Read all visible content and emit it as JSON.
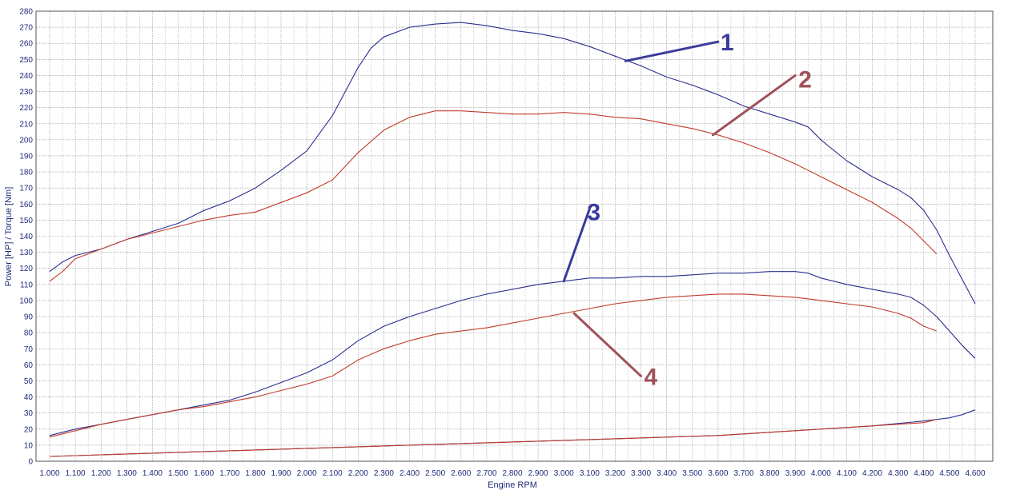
{
  "chart_data": {
    "type": "line",
    "title": "",
    "xlabel": "Engine RPM",
    "ylabel": "Power [HP] / Torque [Nm]",
    "xlim": [
      1000,
      4600
    ],
    "ylim": [
      0,
      280
    ],
    "grid": true,
    "x_ticks": [
      "1.000",
      "1.100",
      "1.200",
      "1.300",
      "1.400",
      "1.500",
      "1.600",
      "1.700",
      "1.800",
      "1.900",
      "2.000",
      "2.100",
      "2.200",
      "2.300",
      "2.400",
      "2.500",
      "2.600",
      "2.700",
      "2.800",
      "2.900",
      "3.000",
      "3.100",
      "3.200",
      "3.300",
      "3.400",
      "3.500",
      "3.600",
      "3.700",
      "3.800",
      "3.900",
      "4.000",
      "4.100",
      "4.200",
      "4.300",
      "4.400",
      "4.500",
      "4.600"
    ],
    "y_ticks": [
      "0",
      "10",
      "20",
      "30",
      "40",
      "50",
      "60",
      "70",
      "80",
      "90",
      "100",
      "110",
      "120",
      "130",
      "140",
      "150",
      "160",
      "170",
      "180",
      "190",
      "200",
      "210",
      "220",
      "230",
      "240",
      "250",
      "260",
      "270",
      "280"
    ],
    "series": [
      {
        "color": "#2a2f8f",
        "points": [
          [
            1000,
            118
          ],
          [
            1050,
            124
          ],
          [
            1100,
            128
          ],
          [
            1200,
            132
          ],
          [
            1300,
            138
          ],
          [
            1400,
            143
          ],
          [
            1500,
            148
          ],
          [
            1600,
            156
          ],
          [
            1700,
            162
          ],
          [
            1800,
            170
          ],
          [
            1900,
            181
          ],
          [
            2000,
            193
          ],
          [
            2100,
            215
          ],
          [
            2200,
            245
          ],
          [
            2250,
            257
          ],
          [
            2300,
            264
          ],
          [
            2400,
            270
          ],
          [
            2500,
            272
          ],
          [
            2600,
            273
          ],
          [
            2700,
            271
          ],
          [
            2800,
            268
          ],
          [
            2900,
            266
          ],
          [
            3000,
            263
          ],
          [
            3100,
            258
          ],
          [
            3200,
            252
          ],
          [
            3300,
            246
          ],
          [
            3400,
            239
          ],
          [
            3500,
            234
          ],
          [
            3600,
            228
          ],
          [
            3700,
            221
          ],
          [
            3800,
            216
          ],
          [
            3900,
            211
          ],
          [
            3950,
            208
          ],
          [
            4000,
            200
          ],
          [
            4100,
            187
          ],
          [
            4200,
            177
          ],
          [
            4300,
            169
          ],
          [
            4350,
            164
          ],
          [
            4400,
            156
          ],
          [
            4450,
            144
          ],
          [
            4500,
            128
          ],
          [
            4550,
            113
          ],
          [
            4600,
            98
          ]
        ]
      },
      {
        "color": "#c23b2b",
        "points": [
          [
            1000,
            112
          ],
          [
            1050,
            118
          ],
          [
            1100,
            126
          ],
          [
            1200,
            132
          ],
          [
            1300,
            138
          ],
          [
            1400,
            142
          ],
          [
            1500,
            146
          ],
          [
            1600,
            150
          ],
          [
            1700,
            153
          ],
          [
            1800,
            155
          ],
          [
            1900,
            161
          ],
          [
            2000,
            167
          ],
          [
            2100,
            175
          ],
          [
            2200,
            192
          ],
          [
            2300,
            206
          ],
          [
            2400,
            214
          ],
          [
            2500,
            218
          ],
          [
            2600,
            218
          ],
          [
            2700,
            217
          ],
          [
            2800,
            216
          ],
          [
            2900,
            216
          ],
          [
            3000,
            217
          ],
          [
            3100,
            216
          ],
          [
            3200,
            214
          ],
          [
            3300,
            213
          ],
          [
            3400,
            210
          ],
          [
            3500,
            207
          ],
          [
            3600,
            203
          ],
          [
            3700,
            198
          ],
          [
            3800,
            192
          ],
          [
            3900,
            185
          ],
          [
            4000,
            177
          ],
          [
            4100,
            169
          ],
          [
            4200,
            161
          ],
          [
            4300,
            151
          ],
          [
            4350,
            145
          ],
          [
            4400,
            137
          ],
          [
            4450,
            129
          ]
        ]
      },
      {
        "color": "#2a2f8f",
        "points": [
          [
            1000,
            16
          ],
          [
            1100,
            20
          ],
          [
            1200,
            23
          ],
          [
            1300,
            26
          ],
          [
            1400,
            29
          ],
          [
            1500,
            32
          ],
          [
            1600,
            35
          ],
          [
            1700,
            38
          ],
          [
            1800,
            43
          ],
          [
            1900,
            49
          ],
          [
            2000,
            55
          ],
          [
            2100,
            63
          ],
          [
            2200,
            75
          ],
          [
            2300,
            84
          ],
          [
            2400,
            90
          ],
          [
            2500,
            95
          ],
          [
            2600,
            100
          ],
          [
            2700,
            104
          ],
          [
            2800,
            107
          ],
          [
            2900,
            110
          ],
          [
            3000,
            112
          ],
          [
            3100,
            114
          ],
          [
            3200,
            114
          ],
          [
            3300,
            115
          ],
          [
            3400,
            115
          ],
          [
            3500,
            116
          ],
          [
            3600,
            117
          ],
          [
            3700,
            117
          ],
          [
            3800,
            118
          ],
          [
            3900,
            118
          ],
          [
            3950,
            117
          ],
          [
            4000,
            114
          ],
          [
            4100,
            110
          ],
          [
            4200,
            107
          ],
          [
            4300,
            104
          ],
          [
            4350,
            102
          ],
          [
            4400,
            97
          ],
          [
            4450,
            90
          ],
          [
            4500,
            81
          ],
          [
            4550,
            72
          ],
          [
            4600,
            64
          ]
        ]
      },
      {
        "color": "#c23b2b",
        "points": [
          [
            1000,
            15
          ],
          [
            1100,
            19
          ],
          [
            1200,
            23
          ],
          [
            1300,
            26
          ],
          [
            1400,
            29
          ],
          [
            1500,
            32
          ],
          [
            1600,
            34
          ],
          [
            1700,
            37
          ],
          [
            1800,
            40
          ],
          [
            1900,
            44
          ],
          [
            2000,
            48
          ],
          [
            2100,
            53
          ],
          [
            2200,
            63
          ],
          [
            2300,
            70
          ],
          [
            2400,
            75
          ],
          [
            2500,
            79
          ],
          [
            2600,
            81
          ],
          [
            2700,
            83
          ],
          [
            2800,
            86
          ],
          [
            2900,
            89
          ],
          [
            3000,
            92
          ],
          [
            3100,
            95
          ],
          [
            3200,
            98
          ],
          [
            3300,
            100
          ],
          [
            3400,
            102
          ],
          [
            3500,
            103
          ],
          [
            3600,
            104
          ],
          [
            3700,
            104
          ],
          [
            3800,
            103
          ],
          [
            3900,
            102
          ],
          [
            4000,
            100
          ],
          [
            4100,
            98
          ],
          [
            4200,
            96
          ],
          [
            4300,
            92
          ],
          [
            4350,
            89
          ],
          [
            4400,
            84
          ],
          [
            4450,
            81
          ]
        ]
      },
      {
        "color": "#2a2f8f",
        "points": [
          [
            1000,
            3
          ],
          [
            1200,
            4
          ],
          [
            1400,
            5
          ],
          [
            1600,
            6
          ],
          [
            1800,
            7
          ],
          [
            2000,
            8
          ],
          [
            2200,
            9
          ],
          [
            2400,
            10
          ],
          [
            2600,
            11
          ],
          [
            2800,
            12
          ],
          [
            3000,
            13
          ],
          [
            3200,
            14
          ],
          [
            3400,
            15
          ],
          [
            3600,
            16
          ],
          [
            3800,
            18
          ],
          [
            4000,
            20
          ],
          [
            4200,
            22
          ],
          [
            4400,
            25
          ],
          [
            4500,
            27
          ],
          [
            4550,
            29
          ],
          [
            4600,
            32
          ]
        ]
      },
      {
        "color": "#c23b2b",
        "points": [
          [
            1000,
            3
          ],
          [
            1200,
            4
          ],
          [
            1400,
            5
          ],
          [
            1600,
            6
          ],
          [
            1800,
            7
          ],
          [
            2000,
            8
          ],
          [
            2200,
            9
          ],
          [
            2400,
            10
          ],
          [
            2600,
            11
          ],
          [
            2800,
            12
          ],
          [
            3000,
            13
          ],
          [
            3200,
            14
          ],
          [
            3400,
            15
          ],
          [
            3600,
            16
          ],
          [
            3800,
            18
          ],
          [
            4000,
            20
          ],
          [
            4200,
            22
          ],
          [
            4400,
            24
          ],
          [
            4450,
            26
          ]
        ]
      }
    ],
    "annotations": [
      {
        "text": "1",
        "color": "#3b3b9e",
        "line_start": [
          3240,
          249
        ],
        "line_end": [
          3600,
          261
        ]
      },
      {
        "text": "2",
        "color": "#a0505a",
        "line_start": [
          3580,
          203
        ],
        "line_end": [
          3900,
          240
        ]
      },
      {
        "text": "3",
        "color": "#3b3b9e",
        "line_start": [
          3000,
          112
        ],
        "line_end": [
          3100,
          157
        ]
      },
      {
        "text": "4",
        "color": "#a0505a",
        "line_start": [
          3040,
          92
        ],
        "line_end": [
          3300,
          53
        ]
      }
    ]
  }
}
